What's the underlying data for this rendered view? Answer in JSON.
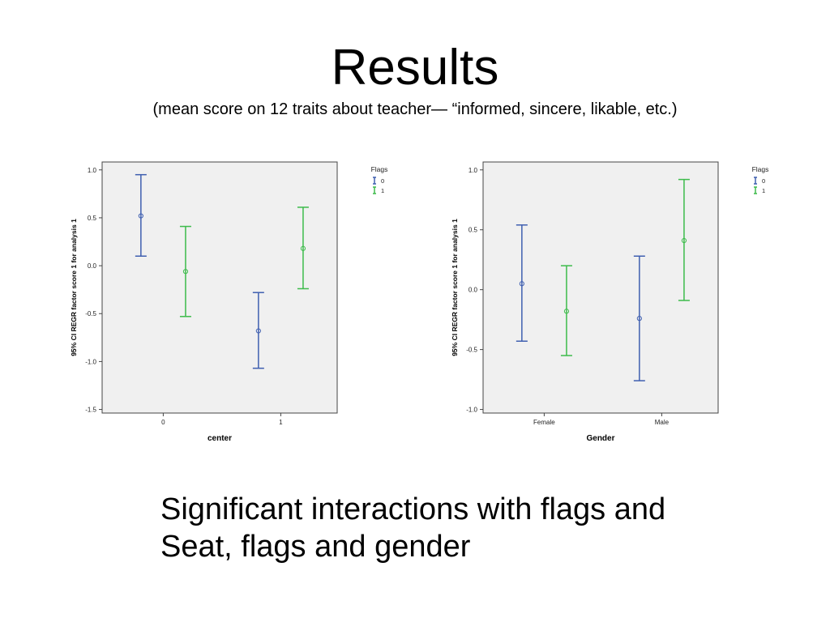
{
  "slide": {
    "title": "Results",
    "subtitle": "(mean score on 12 traits about teacher— “informed, sincere, likable, etc.)",
    "caption_line1": "Significant interactions with flags and",
    "caption_line2": "Seat, flags and gender"
  },
  "colors": {
    "flag0": "#3f5fb0",
    "flag1": "#3dbb4b",
    "plot_bg": "#f0f0f0"
  },
  "chart_data": [
    {
      "type": "errorbar",
      "xlabel": "center",
      "ylabel": "95% CI REGR factor score   1 for analysis 1",
      "categories": [
        "0",
        "1"
      ],
      "ylim": [
        -1.5,
        1.0
      ],
      "yticks": [
        "1.0",
        "0.5",
        "0.0",
        "-0.5",
        "-1.0",
        "-1.5"
      ],
      "ytick_values": [
        1.0,
        0.5,
        0.0,
        -0.5,
        -1.0,
        -1.5
      ],
      "legend": {
        "title": "Flags",
        "position": "top-right"
      },
      "series": [
        {
          "name": "0",
          "mean": [
            0.52,
            -0.68
          ],
          "lower": [
            0.1,
            -1.07
          ],
          "upper": [
            0.95,
            -0.28
          ]
        },
        {
          "name": "1",
          "mean": [
            -0.06,
            0.18
          ],
          "lower": [
            -0.53,
            -0.24
          ],
          "upper": [
            0.41,
            0.61
          ]
        }
      ]
    },
    {
      "type": "errorbar",
      "xlabel": "Gender",
      "ylabel": "95% CI REGR factor score   1 for analysis 1",
      "categories": [
        "Female",
        "Male"
      ],
      "ylim": [
        -1.0,
        1.0
      ],
      "yticks": [
        "1.0",
        "0.5",
        "0.0",
        "-0.5",
        "-1.0"
      ],
      "ytick_values": [
        1.0,
        0.5,
        0.0,
        -0.5,
        -1.0
      ],
      "legend": {
        "title": "Flags",
        "position": "top-right"
      },
      "series": [
        {
          "name": "0",
          "mean": [
            0.05,
            -0.24
          ],
          "lower": [
            -0.43,
            -0.76
          ],
          "upper": [
            0.54,
            0.28
          ]
        },
        {
          "name": "1",
          "mean": [
            -0.18,
            0.41
          ],
          "lower": [
            -0.55,
            -0.09
          ],
          "upper": [
            0.2,
            0.92
          ]
        }
      ]
    }
  ]
}
